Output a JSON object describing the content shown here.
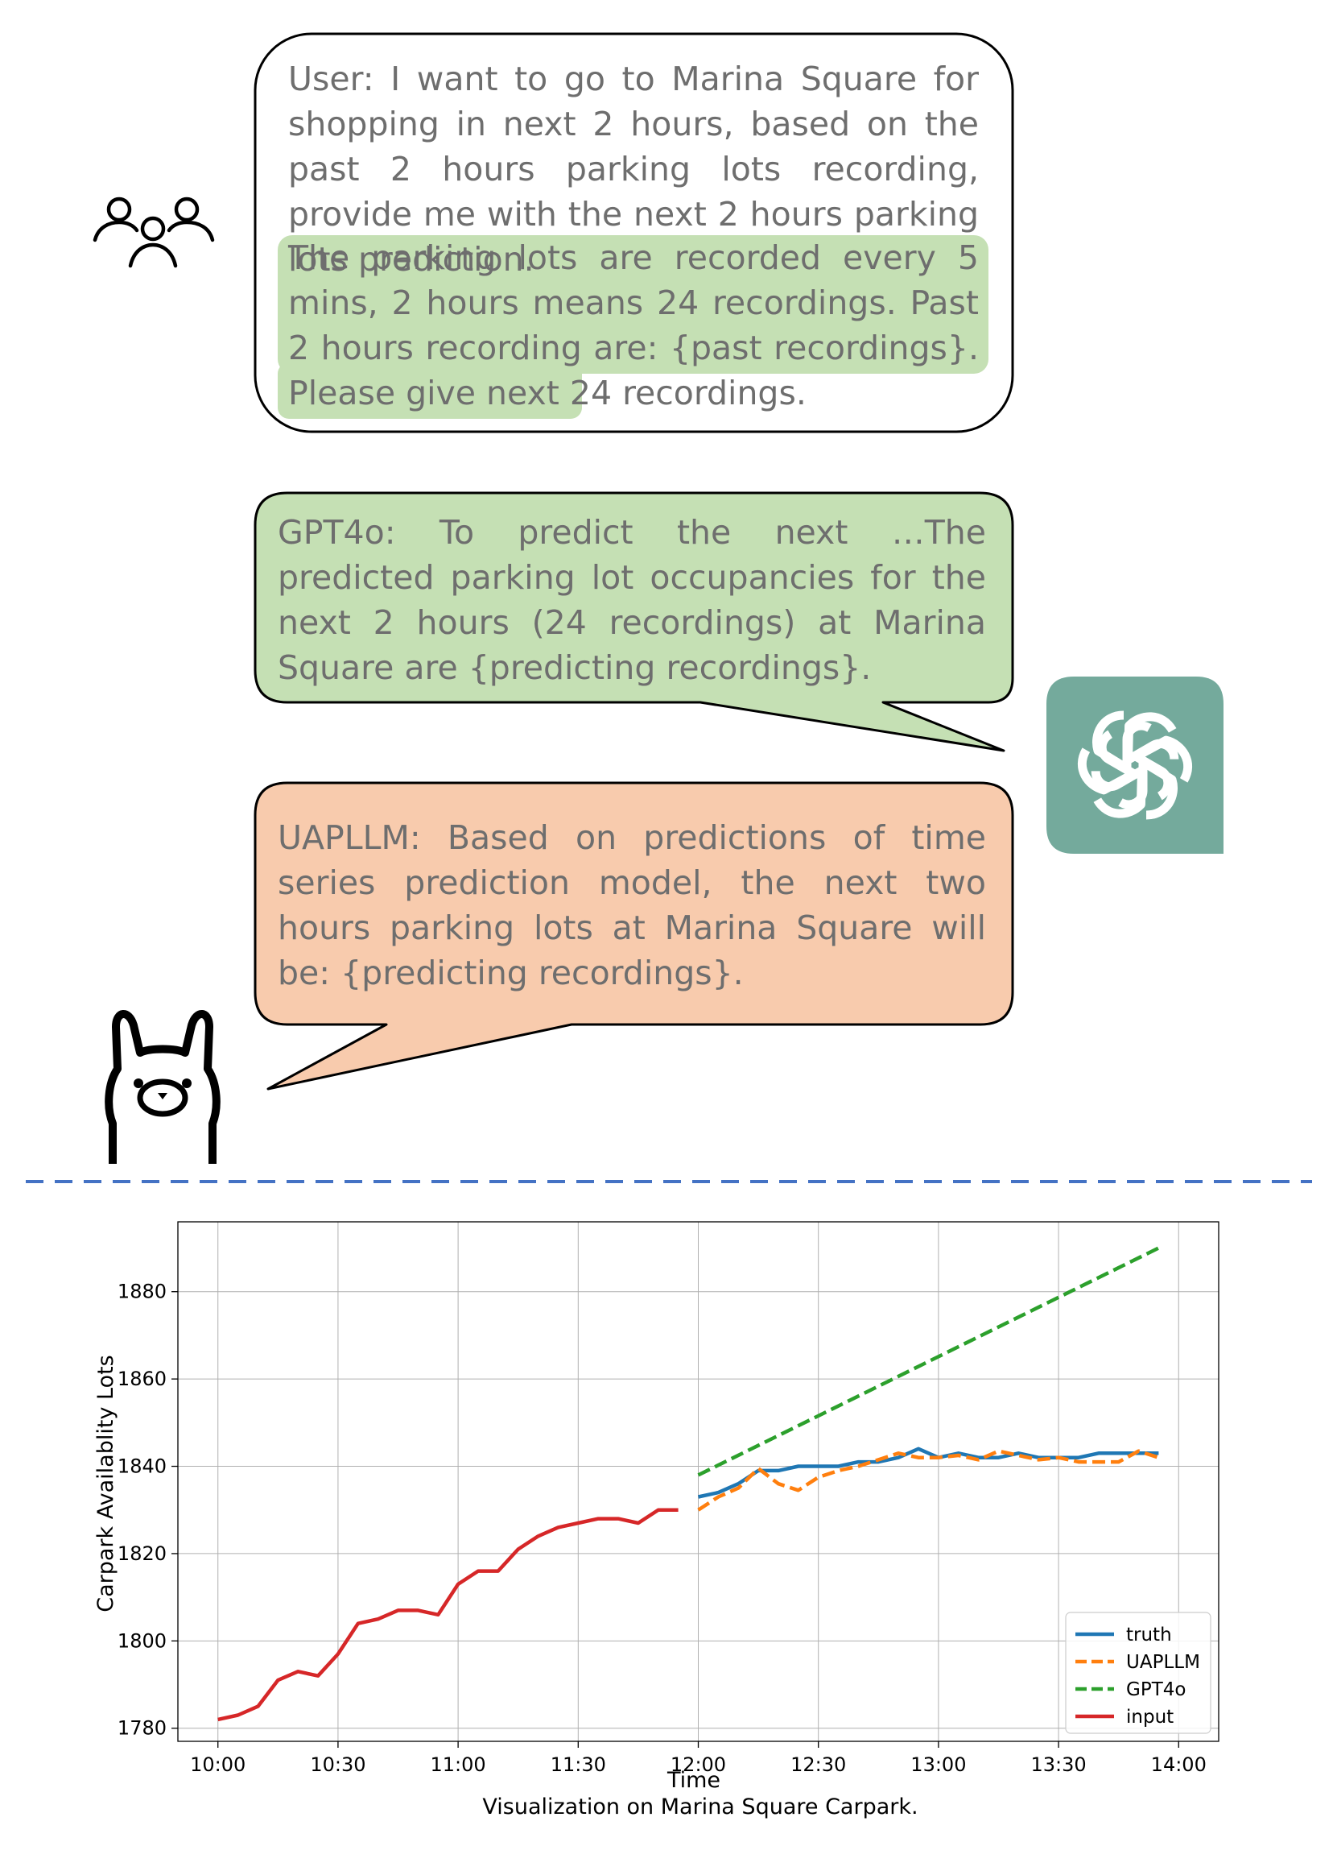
{
  "user_message": {
    "text": "User: I want to go to Marina Square for shopping in next 2 hours, based on the past 2 hours parking lots recording, provide me with the next 2 hours parking lots prediction.",
    "highlight": "The parking lots are recorded every 5 mins, 2 hours means 24 recordings. Past 2 hours recording are: {past recordings}. Please give next 24 recordings."
  },
  "gpt_message": {
    "text": "GPT4o: To predict the next …The predicted parking lot occupancies for the next 2 hours (24 recordings) at Marina Square are {predicting recordings}."
  },
  "uapllm_message": {
    "text": "UAPLLM: Based on predictions of time series prediction model, the next two hours parking lots at Marina Square will be: {predicting recordings}."
  },
  "icons": [
    "users-icon",
    "openai-logo-icon",
    "llama-icon"
  ],
  "colors": {
    "user_highlight": "#c5e0b4",
    "gpt_bubble": "#c5e0b4",
    "uapllm_bubble": "#f8cbad",
    "openai_bg": "#74aa9c",
    "separator": "#4472c4"
  },
  "chart_data": {
    "type": "line",
    "title": "",
    "xlabel": "Time",
    "ylabel": "Carpark Availablity Lots",
    "caption": "Visualization on Marina Square Carpark.",
    "x_ticks": [
      "10:00",
      "10:30",
      "11:00",
      "11:30",
      "12:00",
      "12:30",
      "13:00",
      "13:30",
      "14:00"
    ],
    "y_ticks": [
      1780,
      1800,
      1820,
      1840,
      1860,
      1880
    ],
    "xlim_minutes_from_10": [
      -10,
      250
    ],
    "ylim": [
      1777,
      1896
    ],
    "grid": true,
    "legend_position": "lower-right",
    "series": [
      {
        "name": "truth",
        "color": "#1f77b4",
        "dash": "solid",
        "x_minutes_from_10": [
          120,
          125,
          130,
          135,
          140,
          145,
          150,
          155,
          160,
          165,
          170,
          175,
          180,
          185,
          190,
          195,
          200,
          205,
          210,
          215,
          220,
          225,
          230,
          235
        ],
        "values": [
          1833,
          1834,
          1836,
          1839,
          1839,
          1840,
          1840,
          1840,
          1841,
          1841,
          1842,
          1844,
          1842,
          1843,
          1842,
          1842,
          1843,
          1842,
          1842,
          1842,
          1843,
          1843,
          1843,
          1843
        ]
      },
      {
        "name": "UAPLLM",
        "color": "#ff7f0e",
        "dash": "dashed",
        "x_minutes_from_10": [
          120,
          125,
          130,
          135,
          140,
          145,
          150,
          155,
          160,
          165,
          170,
          175,
          180,
          185,
          190,
          195,
          200,
          205,
          210,
          215,
          220,
          225,
          230,
          235
        ],
        "values": [
          1830,
          1833,
          1835,
          1839.5,
          1836,
          1834.5,
          1837.5,
          1839,
          1840,
          1841.5,
          1843,
          1842,
          1842,
          1842.5,
          1841.5,
          1843.5,
          1842.5,
          1841.5,
          1842,
          1841,
          1841,
          1841,
          1843.5,
          1842
        ]
      },
      {
        "name": "GPT4o",
        "color": "#2ca02c",
        "dash": "dashed",
        "x_minutes_from_10": [
          120,
          235
        ],
        "values": [
          1838,
          1890
        ]
      },
      {
        "name": "input",
        "color": "#d62728",
        "dash": "solid",
        "x_minutes_from_10": [
          0,
          5,
          10,
          15,
          20,
          25,
          30,
          35,
          40,
          45,
          50,
          55,
          60,
          65,
          70,
          75,
          80,
          85,
          90,
          95,
          100,
          105,
          110,
          115
        ],
        "values": [
          1782,
          1783,
          1785,
          1791,
          1793,
          1792,
          1797,
          1804,
          1805,
          1807,
          1807,
          1806,
          1813,
          1816,
          1816,
          1821,
          1824,
          1826,
          1827,
          1828,
          1828,
          1827,
          1830,
          1830
        ]
      }
    ]
  }
}
